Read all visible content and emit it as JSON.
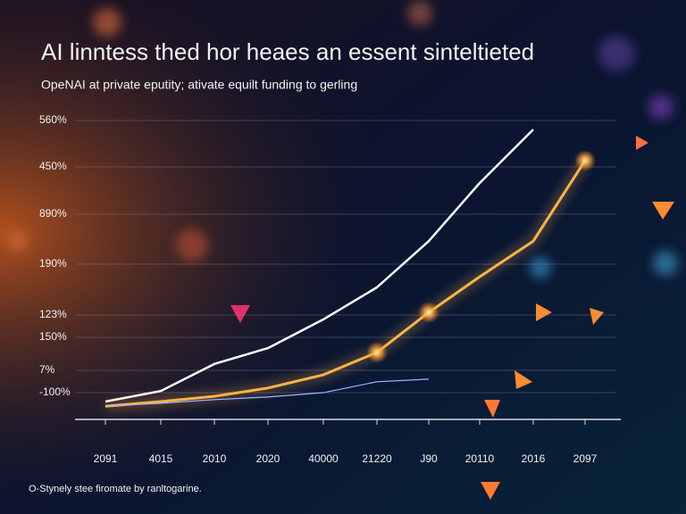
{
  "chart_data": {
    "type": "line",
    "title": "AI linntess thed hor heaes an essent sinteltieted",
    "subtitle": "OpeNAI at private eputity; ativate equilt funding to gerling",
    "footnote": "O-Stynely stee firomate by ranltogarine.",
    "y_axis_labels": [
      "560%",
      "450%",
      "890%",
      "190%",
      "123%",
      "150%",
      "7%",
      "-100%"
    ],
    "categories": [
      "2091",
      "4015",
      "2010",
      "2020",
      "40000",
      "21220",
      "J90",
      "20110",
      "2016",
      "2097"
    ],
    "ylim": [
      0,
      100
    ],
    "series": [
      {
        "color": "#ffffff",
        "values": [
          5.4,
          8.6,
          16.8,
          21.6,
          30.3,
          40,
          54,
          71.6,
          87.8,
          null
        ]
      },
      {
        "color": "#ffb347",
        "values": [
          4,
          5.4,
          7,
          9.5,
          13.5,
          20.3,
          32.4,
          43.2,
          54,
          78.4
        ]
      },
      {
        "color": "#9fb8ff",
        "values": [
          4,
          4.9,
          6,
          6.8,
          8.1,
          11.4,
          12.2,
          null,
          null,
          null
        ]
      }
    ]
  }
}
